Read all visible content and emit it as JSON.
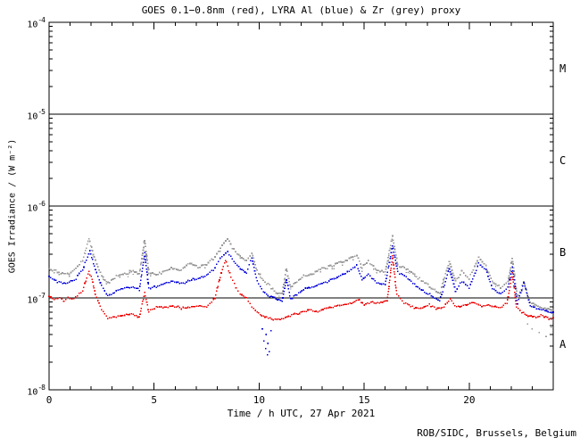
{
  "title": "GOES 0.1−0.8nm (red), LYRA Al (blue) & Zr (grey) proxy",
  "credit": "ROB/SIDC, Brussels, Belgium",
  "colors": {
    "axis": "#000000",
    "background": "#ffffff",
    "goes_red": "#ee0000",
    "lyra_al_blue": "#0000dd",
    "lyra_zr_grey": "#999999"
  },
  "chart_data": {
    "type": "scatter",
    "title": "GOES 0.1−0.8nm (red), LYRA Al (blue) & Zr (grey) proxy",
    "xlabel": "Time / h UTC, 27 Apr 2021",
    "ylabel": "GOES Irradiance / (W m⁻²)",
    "x_range": [
      0,
      24
    ],
    "x_major_ticks": [
      0,
      5,
      10,
      15,
      20
    ],
    "x_minor_step": 1,
    "y_scale": "log",
    "y_range": [
      1e-08,
      0.0001
    ],
    "y_tick_base": "10",
    "y_tick_exponents": [
      "-4",
      "-5",
      "-6",
      "-7",
      "-8"
    ],
    "class_boundaries": [
      1e-05,
      1e-06,
      1e-07
    ],
    "flare_class_labels": [
      "M",
      "C",
      "B",
      "A"
    ],
    "grid": false,
    "legend_position": "in-title",
    "series": [
      {
        "name": "LYRA Zr proxy",
        "color": "#999999",
        "seed": 2021,
        "points": [
          [
            0.0,
            2.1e-07
          ],
          [
            0.4,
            1.9e-07
          ],
          [
            0.8,
            1.8e-07
          ],
          [
            1.2,
            2e-07
          ],
          [
            1.6,
            2.6e-07
          ],
          [
            1.9,
            4.4e-07
          ],
          [
            2.15,
            2.8e-07
          ],
          [
            2.5,
            1.75e-07
          ],
          [
            2.8,
            1.45e-07
          ],
          [
            3.2,
            1.7e-07
          ],
          [
            3.6,
            1.85e-07
          ],
          [
            4.0,
            1.95e-07
          ],
          [
            4.3,
            1.8e-07
          ],
          [
            4.55,
            4.2e-07
          ],
          [
            4.75,
            1.85e-07
          ],
          [
            5.1,
            1.8e-07
          ],
          [
            5.5,
            1.95e-07
          ],
          [
            5.9,
            2.1e-07
          ],
          [
            6.3,
            2e-07
          ],
          [
            6.7,
            2.4e-07
          ],
          [
            7.1,
            2.15e-07
          ],
          [
            7.5,
            2.3e-07
          ],
          [
            7.9,
            2.8e-07
          ],
          [
            8.15,
            3.5e-07
          ],
          [
            8.5,
            4.4e-07
          ],
          [
            8.8,
            3.3e-07
          ],
          [
            9.1,
            2.8e-07
          ],
          [
            9.4,
            2.5e-07
          ],
          [
            9.65,
            3.1e-07
          ],
          [
            9.9,
            2e-07
          ],
          [
            10.2,
            1.55e-07
          ],
          [
            10.5,
            1.35e-07
          ],
          [
            10.8,
            1.15e-07
          ],
          [
            11.1,
            1.1e-07
          ],
          [
            11.3,
            2.1e-07
          ],
          [
            11.5,
            1.3e-07
          ],
          [
            11.8,
            1.5e-07
          ],
          [
            12.2,
            1.75e-07
          ],
          [
            12.6,
            1.85e-07
          ],
          [
            13.0,
            2.1e-07
          ],
          [
            13.4,
            2.2e-07
          ],
          [
            13.8,
            2.4e-07
          ],
          [
            14.2,
            2.6e-07
          ],
          [
            14.65,
            2.9e-07
          ],
          [
            14.9,
            2.15e-07
          ],
          [
            15.2,
            2.55e-07
          ],
          [
            15.6,
            2e-07
          ],
          [
            16.0,
            1.9e-07
          ],
          [
            16.35,
            4.7e-07
          ],
          [
            16.6,
            2.3e-07
          ],
          [
            17.0,
            2.1e-07
          ],
          [
            17.4,
            1.8e-07
          ],
          [
            17.8,
            1.5e-07
          ],
          [
            18.2,
            1.3e-07
          ],
          [
            18.6,
            1.1e-07
          ],
          [
            19.05,
            2.5e-07
          ],
          [
            19.35,
            1.5e-07
          ],
          [
            19.65,
            1.9e-07
          ],
          [
            20.0,
            1.6e-07
          ],
          [
            20.45,
            2.8e-07
          ],
          [
            20.8,
            2.2e-07
          ],
          [
            21.1,
            1.5e-07
          ],
          [
            21.5,
            1.3e-07
          ],
          [
            21.85,
            1.5e-07
          ],
          [
            22.05,
            2.7e-07
          ],
          [
            22.3,
            1e-07
          ],
          [
            22.6,
            1.5e-07
          ],
          [
            22.9,
            9e-08
          ],
          [
            23.2,
            8.2e-08
          ],
          [
            23.6,
            7.8e-08
          ],
          [
            24.0,
            7.4e-08
          ]
        ],
        "outliers": [
          [
            22.75,
            5.2e-08
          ],
          [
            23.0,
            4.6e-08
          ],
          [
            23.3,
            4.2e-08
          ],
          [
            23.7,
            3.8e-08
          ],
          [
            23.9,
            4.8e-08
          ]
        ]
      },
      {
        "name": "LYRA Al proxy",
        "color": "#0000dd",
        "seed": 1337,
        "points": [
          [
            0.0,
            1.7e-07
          ],
          [
            0.4,
            1.5e-07
          ],
          [
            0.8,
            1.42e-07
          ],
          [
            1.2,
            1.55e-07
          ],
          [
            1.6,
            2e-07
          ],
          [
            1.95,
            3.3e-07
          ],
          [
            2.15,
            2.2e-07
          ],
          [
            2.5,
            1.35e-07
          ],
          [
            2.8,
            1.05e-07
          ],
          [
            3.2,
            1.18e-07
          ],
          [
            3.6,
            1.28e-07
          ],
          [
            4.0,
            1.32e-07
          ],
          [
            4.3,
            1.22e-07
          ],
          [
            4.55,
            3.1e-07
          ],
          [
            4.75,
            1.28e-07
          ],
          [
            5.1,
            1.3e-07
          ],
          [
            5.5,
            1.45e-07
          ],
          [
            5.9,
            1.52e-07
          ],
          [
            6.3,
            1.42e-07
          ],
          [
            6.7,
            1.55e-07
          ],
          [
            7.1,
            1.62e-07
          ],
          [
            7.5,
            1.75e-07
          ],
          [
            7.9,
            2.1e-07
          ],
          [
            8.15,
            2.7e-07
          ],
          [
            8.5,
            3.2e-07
          ],
          [
            8.8,
            2.5e-07
          ],
          [
            9.1,
            2.1e-07
          ],
          [
            9.4,
            1.9e-07
          ],
          [
            9.65,
            2.7e-07
          ],
          [
            9.9,
            1.55e-07
          ],
          [
            10.2,
            1.15e-07
          ],
          [
            10.5,
            1.05e-07
          ],
          [
            10.8,
            9.8e-08
          ],
          [
            11.1,
            9.3e-08
          ],
          [
            11.3,
            1.6e-07
          ],
          [
            11.5,
            9.8e-08
          ],
          [
            11.8,
            1.1e-07
          ],
          [
            12.2,
            1.25e-07
          ],
          [
            12.6,
            1.32e-07
          ],
          [
            13.0,
            1.45e-07
          ],
          [
            13.4,
            1.55e-07
          ],
          [
            13.8,
            1.7e-07
          ],
          [
            14.2,
            1.9e-07
          ],
          [
            14.65,
            2.3e-07
          ],
          [
            14.9,
            1.6e-07
          ],
          [
            15.2,
            1.8e-07
          ],
          [
            15.6,
            1.45e-07
          ],
          [
            16.0,
            1.4e-07
          ],
          [
            16.35,
            3.7e-07
          ],
          [
            16.6,
            1.9e-07
          ],
          [
            17.0,
            1.7e-07
          ],
          [
            17.4,
            1.4e-07
          ],
          [
            17.8,
            1.2e-07
          ],
          [
            18.2,
            1.05e-07
          ],
          [
            18.6,
            9.3e-08
          ],
          [
            19.05,
            2.1e-07
          ],
          [
            19.35,
            1.2e-07
          ],
          [
            19.65,
            1.5e-07
          ],
          [
            20.0,
            1.3e-07
          ],
          [
            20.45,
            2.35e-07
          ],
          [
            20.8,
            2e-07
          ],
          [
            21.1,
            1.25e-07
          ],
          [
            21.5,
            1.1e-07
          ],
          [
            21.85,
            1.3e-07
          ],
          [
            22.05,
            2.15e-07
          ],
          [
            22.3,
            8.8e-08
          ],
          [
            22.6,
            1.45e-07
          ],
          [
            22.9,
            8.2e-08
          ],
          [
            23.2,
            7.6e-08
          ],
          [
            23.6,
            7.3e-08
          ],
          [
            24.0,
            7e-08
          ]
        ],
        "outliers": [
          [
            10.15,
            4.6e-08
          ],
          [
            10.2,
            3.4e-08
          ],
          [
            10.27,
            2.8e-08
          ],
          [
            10.33,
            4e-08
          ],
          [
            10.38,
            2.4e-08
          ],
          [
            10.45,
            3.2e-08
          ],
          [
            10.5,
            2.6e-08
          ],
          [
            10.55,
            4.4e-08
          ]
        ]
      },
      {
        "name": "GOES 0.1−0.8nm",
        "color": "#ee0000",
        "seed": 42,
        "points": [
          [
            0.0,
            1.05e-07
          ],
          [
            0.25,
            9.6e-08
          ],
          [
            0.5,
            1e-07
          ],
          [
            0.7,
            9e-08
          ],
          [
            0.9,
            1.02e-07
          ],
          [
            1.1,
            9.5e-08
          ],
          [
            1.35,
            1.05e-07
          ],
          [
            1.6,
            1.2e-07
          ],
          [
            1.9,
            1.95e-07
          ],
          [
            2.05,
            1.6e-07
          ],
          [
            2.2,
            1.1e-07
          ],
          [
            2.5,
            7.5e-08
          ],
          [
            2.8,
            6e-08
          ],
          [
            3.2,
            6.2e-08
          ],
          [
            3.6,
            6.5e-08
          ],
          [
            4.0,
            6.6e-08
          ],
          [
            4.3,
            6.2e-08
          ],
          [
            4.55,
            1.15e-07
          ],
          [
            4.75,
            7e-08
          ],
          [
            5.1,
            8e-08
          ],
          [
            5.5,
            7.8e-08
          ],
          [
            5.9,
            8.2e-08
          ],
          [
            6.3,
            7.7e-08
          ],
          [
            6.7,
            8e-08
          ],
          [
            7.1,
            8.3e-08
          ],
          [
            7.5,
            8e-08
          ],
          [
            7.9,
            1e-07
          ],
          [
            8.15,
            1.7e-07
          ],
          [
            8.4,
            2.6e-07
          ],
          [
            8.65,
            1.7e-07
          ],
          [
            8.9,
            1.3e-07
          ],
          [
            9.1,
            1.1e-07
          ],
          [
            9.4,
            1e-07
          ],
          [
            9.65,
            8e-08
          ],
          [
            9.9,
            7e-08
          ],
          [
            10.2,
            6.3e-08
          ],
          [
            10.6,
            5.9e-08
          ],
          [
            11.0,
            5.8e-08
          ],
          [
            11.4,
            6.3e-08
          ],
          [
            11.7,
            6.8e-08
          ],
          [
            12.0,
            7e-08
          ],
          [
            12.4,
            7.4e-08
          ],
          [
            12.8,
            7.1e-08
          ],
          [
            13.2,
            7.8e-08
          ],
          [
            13.6,
            8e-08
          ],
          [
            14.0,
            8.4e-08
          ],
          [
            14.4,
            8.8e-08
          ],
          [
            14.7,
            9.7e-08
          ],
          [
            15.0,
            8.5e-08
          ],
          [
            15.4,
            9e-08
          ],
          [
            15.8,
            8.8e-08
          ],
          [
            16.1,
            9.3e-08
          ],
          [
            16.35,
            2.9e-07
          ],
          [
            16.55,
            1.1e-07
          ],
          [
            16.9,
            8.8e-08
          ],
          [
            17.3,
            8e-08
          ],
          [
            17.7,
            7.7e-08
          ],
          [
            18.1,
            8.4e-08
          ],
          [
            18.5,
            7.6e-08
          ],
          [
            18.8,
            8e-08
          ],
          [
            19.1,
            9.7e-08
          ],
          [
            19.4,
            8e-08
          ],
          [
            19.8,
            8.4e-08
          ],
          [
            20.2,
            8.8e-08
          ],
          [
            20.6,
            8.2e-08
          ],
          [
            21.0,
            8.4e-08
          ],
          [
            21.4,
            7.7e-08
          ],
          [
            21.8,
            8.8e-08
          ],
          [
            22.05,
            1.85e-07
          ],
          [
            22.25,
            8e-08
          ],
          [
            22.5,
            6.9e-08
          ],
          [
            22.8,
            6.4e-08
          ],
          [
            23.1,
            6.2e-08
          ],
          [
            23.5,
            6.5e-08
          ],
          [
            23.8,
            6e-08
          ],
          [
            24.0,
            6.1e-08
          ]
        ],
        "outliers": []
      }
    ]
  }
}
